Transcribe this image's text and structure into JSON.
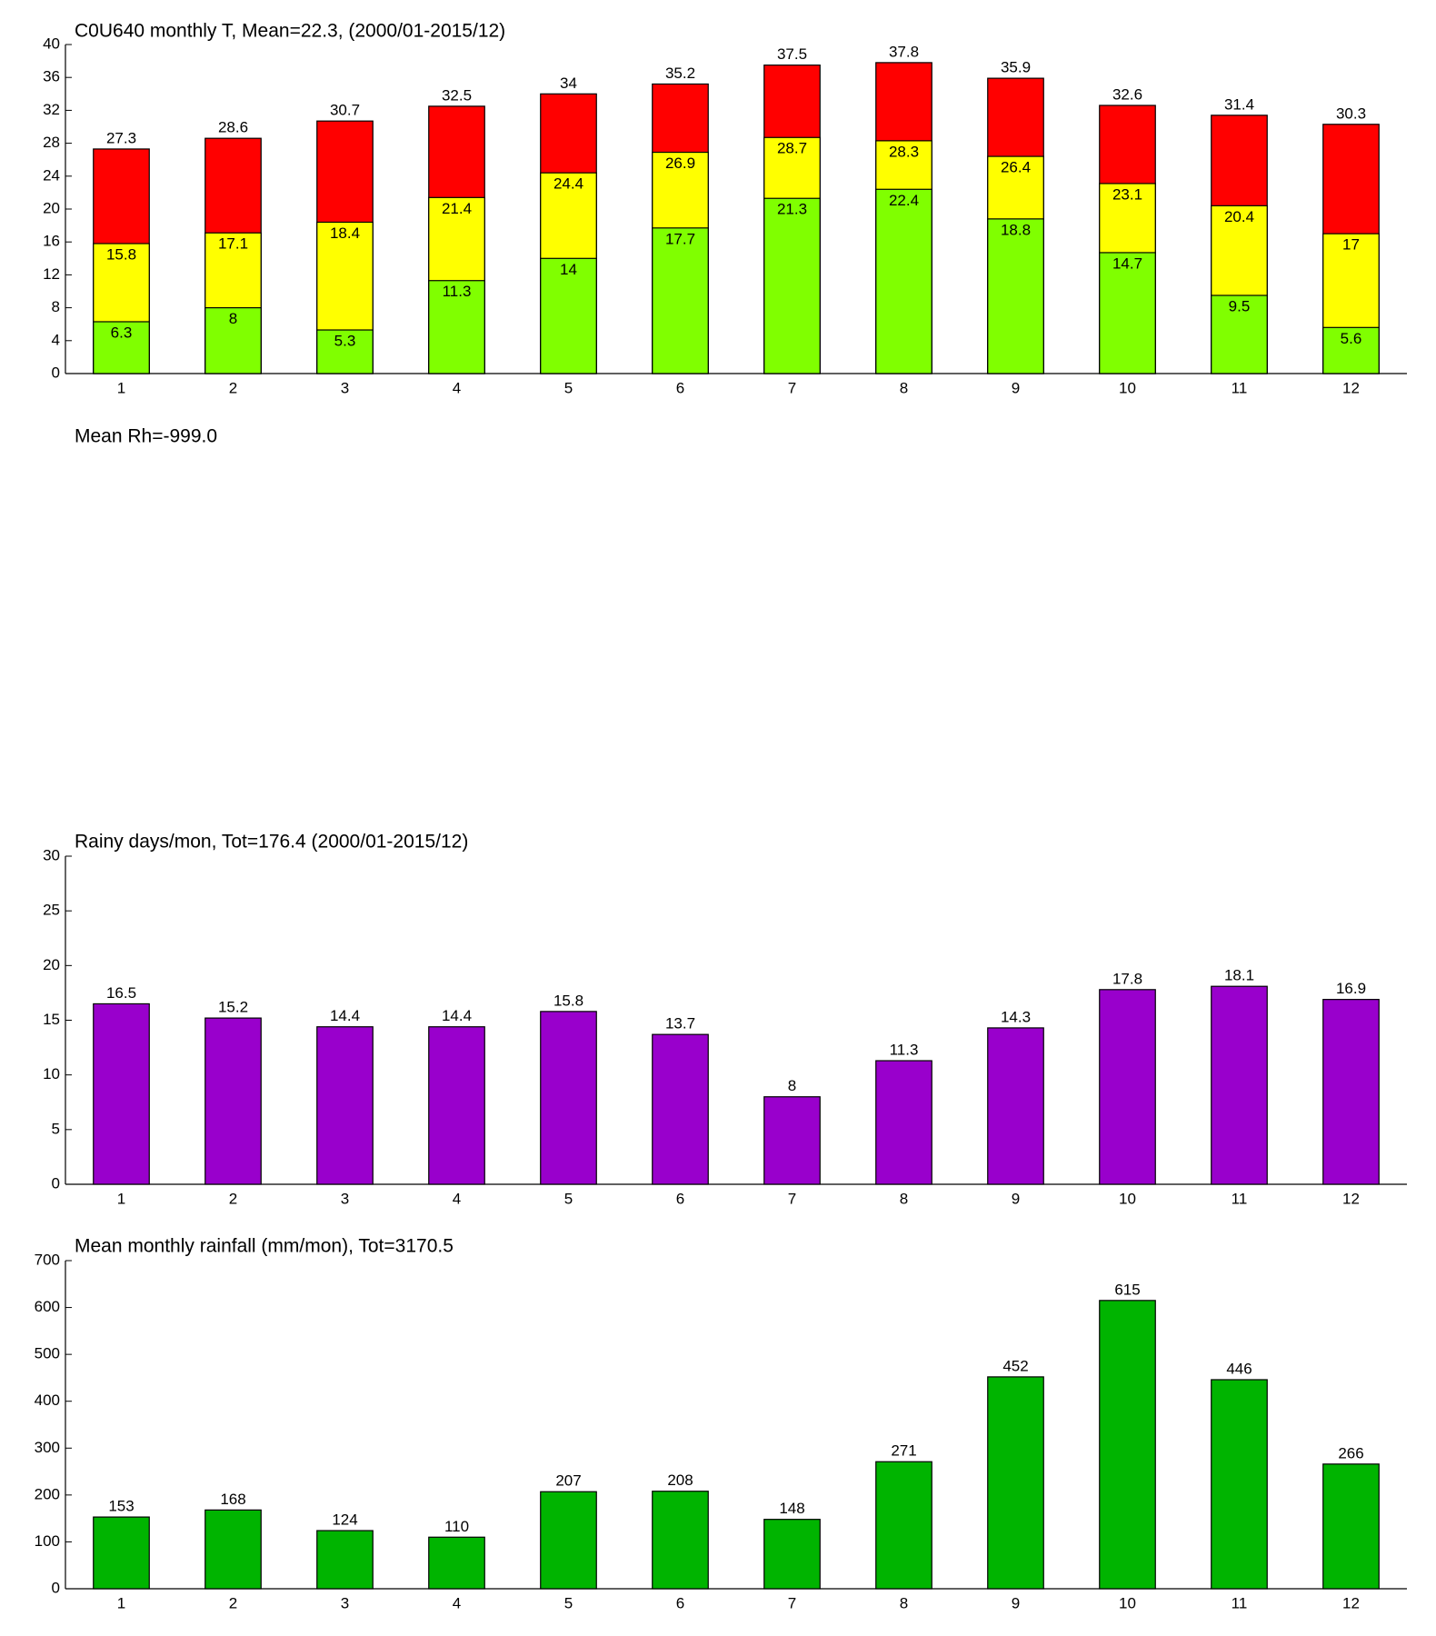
{
  "chart_data": [
    {
      "type": "bar",
      "overlay": true,
      "title": "C0U640 monthly T, Mean=22.3, (2000/01-2015/12)",
      "categories": [
        "1",
        "2",
        "3",
        "4",
        "5",
        "6",
        "7",
        "8",
        "9",
        "10",
        "11",
        "12"
      ],
      "series": [
        {
          "color": "#ff0000",
          "values": [
            27.3,
            28.6,
            30.7,
            32.5,
            34,
            35.2,
            37.5,
            37.8,
            35.9,
            32.6,
            31.4,
            30.3
          ]
        },
        {
          "color": "#ffff00",
          "values": [
            15.8,
            17.1,
            18.4,
            21.4,
            24.4,
            26.9,
            28.7,
            28.3,
            26.4,
            23.1,
            20.4,
            17
          ]
        },
        {
          "color": "#80ff00",
          "values": [
            6.3,
            8,
            5.3,
            11.3,
            14,
            17.7,
            21.3,
            22.4,
            18.8,
            14.7,
            9.5,
            5.6
          ]
        }
      ],
      "ylim": [
        0,
        40
      ],
      "yticks": [
        0,
        4,
        8,
        12,
        16,
        20,
        24,
        28,
        32,
        36,
        40
      ]
    },
    {
      "type": "bar",
      "title": "Mean Rh=-999.0"
    },
    {
      "type": "bar",
      "title": "Rainy days/mon, Tot=176.4 (2000/01-2015/12)",
      "categories": [
        "1",
        "2",
        "3",
        "4",
        "5",
        "6",
        "7",
        "8",
        "9",
        "10",
        "11",
        "12"
      ],
      "series": [
        {
          "color": "#9900cc",
          "values": [
            16.5,
            15.2,
            14.4,
            14.4,
            15.8,
            13.7,
            8,
            11.3,
            14.3,
            17.8,
            18.1,
            16.9
          ]
        }
      ],
      "ylim": [
        0,
        30
      ],
      "yticks": [
        0,
        5,
        10,
        15,
        20,
        25,
        30
      ]
    },
    {
      "type": "bar",
      "title": "Mean monthly rainfall (mm/mon), Tot=3170.5",
      "categories": [
        "1",
        "2",
        "3",
        "4",
        "5",
        "6",
        "7",
        "8",
        "9",
        "10",
        "11",
        "12"
      ],
      "series": [
        {
          "color": "#00b400",
          "values": [
            153,
            168,
            124,
            110,
            207,
            208,
            148,
            271,
            452,
            615,
            446,
            266
          ]
        }
      ],
      "ylim": [
        0,
        700
      ],
      "yticks": [
        0,
        100,
        200,
        300,
        400,
        500,
        600,
        700
      ]
    }
  ]
}
